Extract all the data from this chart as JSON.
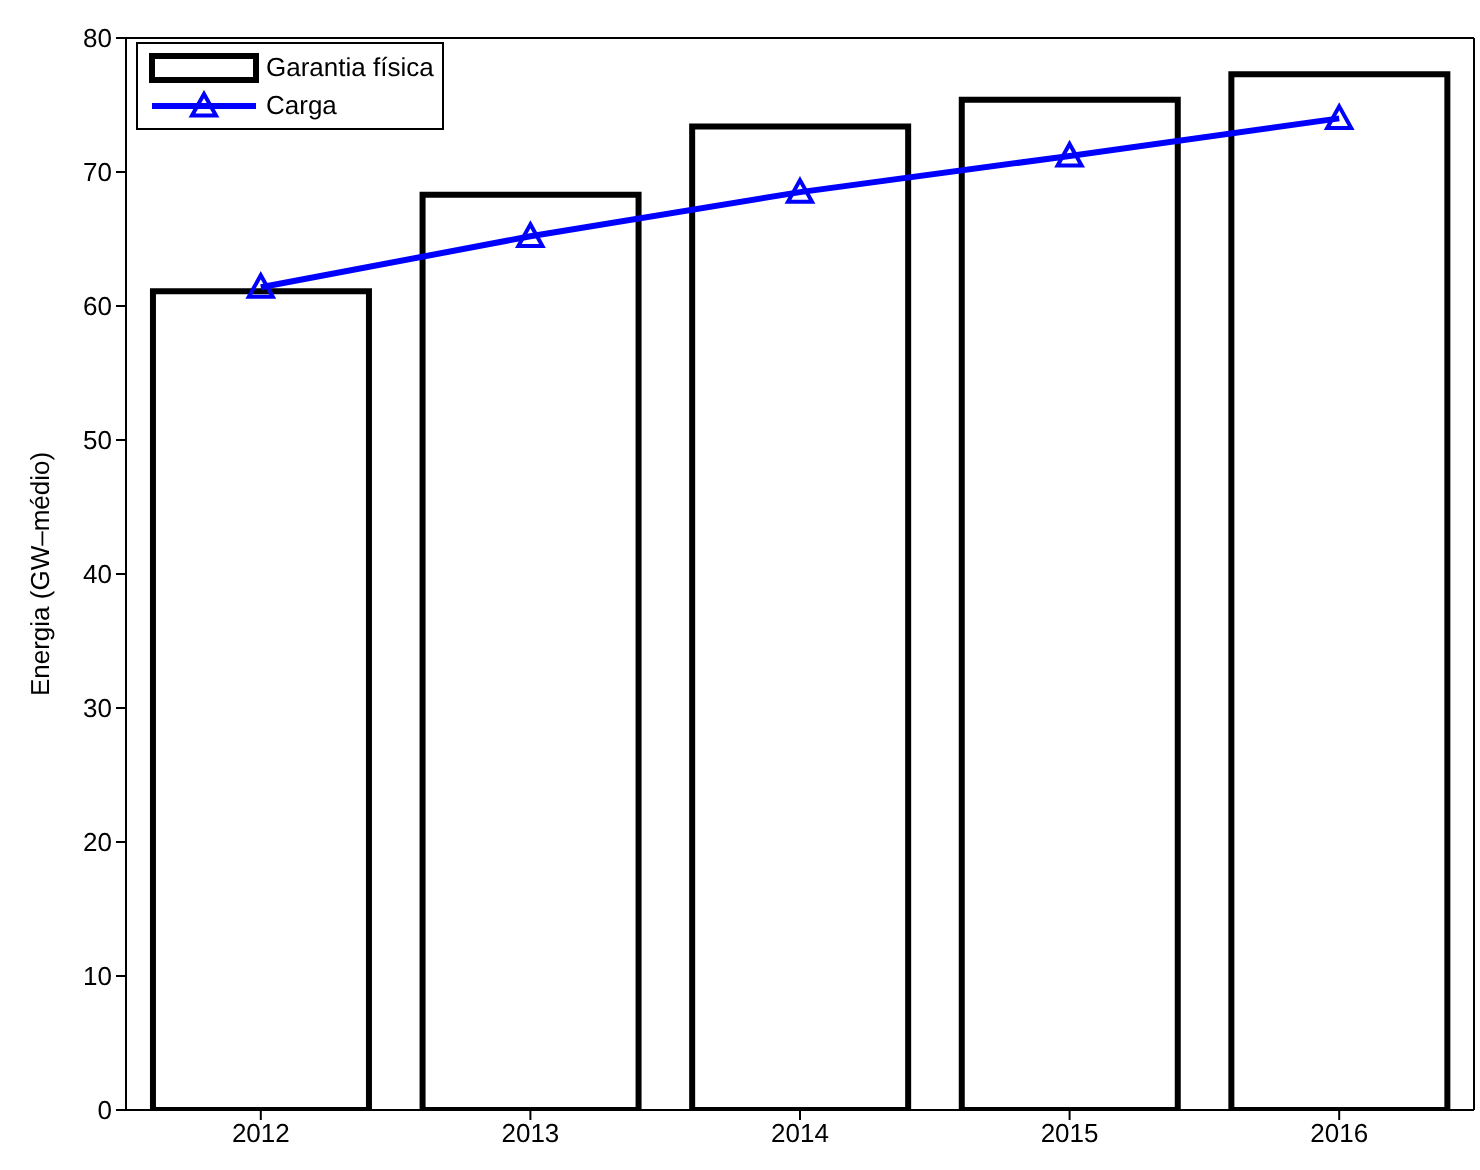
{
  "chart_data": {
    "type": "bar",
    "ylabel": "Energia (GW–médio)",
    "categories": [
      "2012",
      "2013",
      "2014",
      "2015",
      "2016"
    ],
    "series": [
      {
        "name": "Garantia física",
        "color": "#000000",
        "values": [
          61.1,
          68.3,
          73.4,
          75.4,
          77.3
        ]
      },
      {
        "name": "Carga",
        "type": "line",
        "color": "#0000ff",
        "values": [
          61.4,
          65.2,
          68.5,
          71.2,
          74.0
        ],
        "marker": "triangle"
      }
    ],
    "ylim": [
      0,
      80
    ],
    "yticks": [
      0,
      10,
      20,
      30,
      40,
      50,
      60,
      70,
      80
    ],
    "grid": false,
    "legend": "top left"
  }
}
